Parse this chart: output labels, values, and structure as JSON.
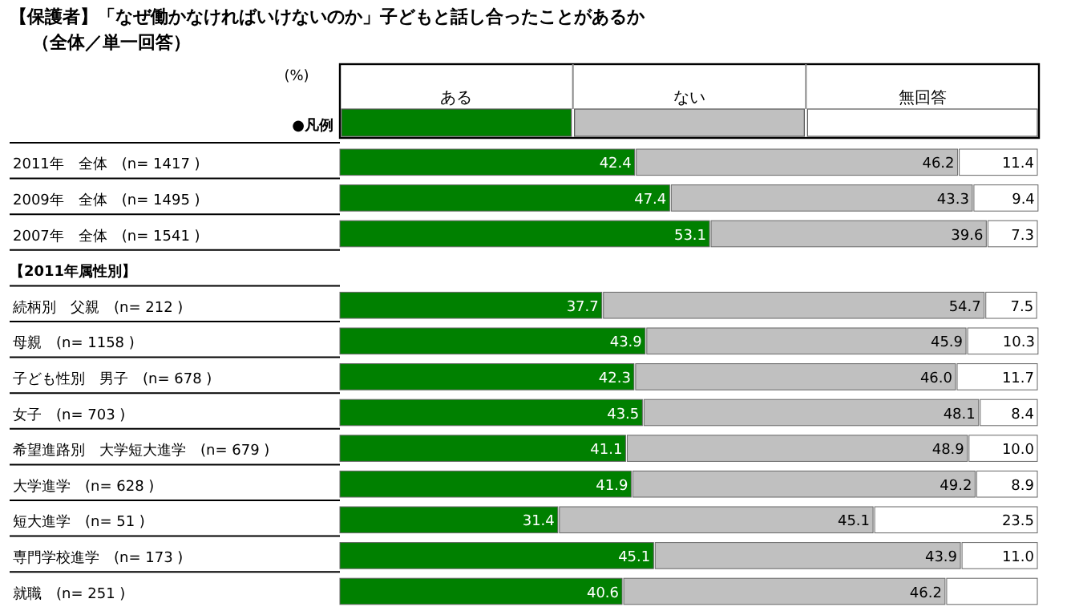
{
  "chart_data": {
    "type": "bar",
    "orientation": "horizontal",
    "stacked": true,
    "title": "【保護者】「なぜ働かなければいけないのか」子どもと話し合ったことがあるか",
    "subtitle": "（全体／単一回答）",
    "categories": [
      "2011年　全体　(n= 1417 )",
      "2009年　全体　(n= 1495 )",
      "2007年　全体　(n= 1541 )",
      null,
      "続柄別　父親　(n= 212 )",
      "母親　(n= 1158 )",
      "子ども性別　男子　(n= 678 )",
      "女子　(n= 703 )",
      "希望進路別　大学短大進学　(n= 679 )",
      "大学進学　(n= 628 )",
      "短大進学　(n= 51 )",
      "専門学校進学　(n= 173 )",
      "就職　(n= 251 )"
    ],
    "xlim": [
      0,
      100
    ],
    "legend": "top",
    "series": [
      {
        "name": "ある",
        "color": "#008000",
        "values": [
          42.4,
          47.4,
          53.1,
          null,
          37.7,
          43.9,
          42.3,
          43.5,
          41.1,
          41.9,
          31.4,
          45.1,
          40.6
        ],
        "value_labels": [
          "42.4",
          "47.4",
          "53.1",
          null,
          "37.7",
          "43.9",
          "42.3",
          "43.5",
          "41.1",
          "41.9",
          "31.4",
          "45.1",
          "40.6"
        ]
      },
      {
        "name": "ない",
        "color": "#c0c0c0",
        "values": [
          46.2,
          43.3,
          39.6,
          null,
          54.7,
          45.9,
          46.0,
          48.1,
          48.9,
          49.2,
          45.1,
          43.9,
          46.2
        ],
        "value_labels": [
          "46.2",
          "43.3",
          "39.6",
          null,
          "54.7",
          "45.9",
          "46.0",
          "48.1",
          "48.9",
          "49.2",
          "45.1",
          "43.9",
          "46.2"
        ]
      },
      {
        "name": "無回答",
        "color": "#ffffff",
        "values": [
          11.4,
          9.4,
          7.3,
          null,
          7.5,
          10.3,
          11.7,
          8.4,
          10.0,
          8.9,
          23.5,
          11.0,
          13.2
        ],
        "value_labels": [
          "11.4",
          "9.4",
          "7.3",
          null,
          "7.5",
          "10.3",
          "11.7",
          "8.4",
          "10.0",
          "8.9",
          "23.5",
          "11.0",
          null
        ]
      }
    ],
    "annotations": [
      "(%)",
      "●凡例",
      "【2011年属性別】"
    ]
  }
}
